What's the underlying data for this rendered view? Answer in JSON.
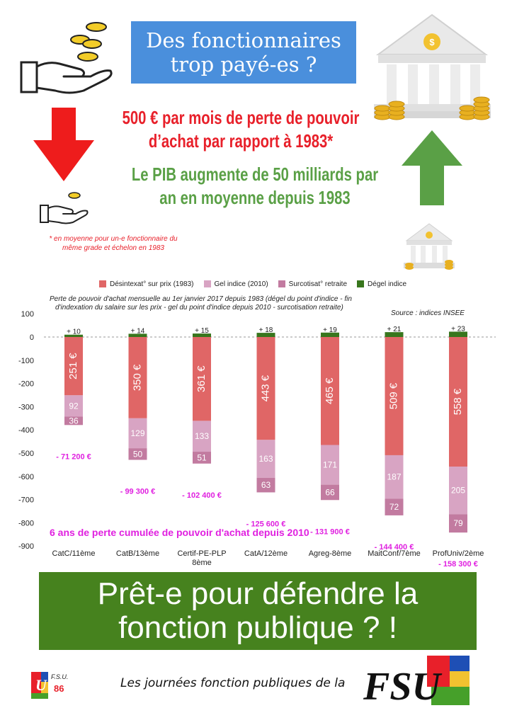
{
  "header": {
    "title_line1": "Des fonctionnaires",
    "title_line2": "trop payé-es ?"
  },
  "loss": {
    "line1": "500 € par mois de perte de pouvoir",
    "line2": "d’achat par rapport à 1983*"
  },
  "pib": {
    "line1": "Le PIB augmente de 50 milliards par",
    "line2": "an en moyenne depuis 1983"
  },
  "footnote": {
    "line1": "* en moyenne pour un-e fonctionnaire du",
    "line2": "même grade et échelon en 1983"
  },
  "colors": {
    "desindexation": "#e06666",
    "gel": "#d8a4c3",
    "surcotisation": "#c27ba0",
    "degel": "#38761d",
    "cumul_text": "#e020e0"
  },
  "chart_data": {
    "type": "bar",
    "title": "Perte de pouvoir d'achat mensuelle au 1er janvier 2017 depuis 1983 (dégel du point d'indice - fin d'indexation du salaire sur les prix - gel du point d'indice depuis 2010 - surcotisation retraite)",
    "title_line1": "Perte de pouvoir d'achat mensuelle au 1er janvier 2017 depuis 1983 (dégel du point d'indice - fin",
    "title_line2": "d'indexation du salaire sur les prix - gel du point d'indice depuis 2010 - surcotisation retraite)",
    "source": "Source : indices INSEE",
    "ylim": [
      -900,
      100
    ],
    "yticks": [
      100,
      0,
      -100,
      -200,
      -300,
      -400,
      -500,
      -600,
      -700,
      -800,
      -900
    ],
    "grid": false,
    "legend_position": "top",
    "categories": [
      "CatC/11ème",
      "CatB/13ème",
      "Certif-PE-PLP 8ème",
      "CatA/12ème",
      "Agreg-8ème",
      "MaitConf/7ème",
      "ProfUniv/2ème"
    ],
    "series": [
      {
        "name": "Désintexat° sur prix (1983)",
        "values": [
          -251,
          -350,
          -361,
          -443,
          -465,
          -509,
          -558
        ],
        "labels": [
          "251 €",
          "350 €",
          "361 €",
          "443 €",
          "465 €",
          "509 €",
          "558 €"
        ]
      },
      {
        "name": "Gel indice (2010)",
        "values": [
          -92,
          -129,
          -133,
          -163,
          -171,
          -187,
          -205
        ],
        "labels": [
          "92",
          "129",
          "133",
          "163",
          "171",
          "187",
          "205"
        ]
      },
      {
        "name": "Surcotisat° retraite",
        "values": [
          -36,
          -50,
          -51,
          -63,
          -66,
          -72,
          -79
        ],
        "labels": [
          "36",
          "50",
          "51",
          "63",
          "66",
          "72",
          "79"
        ]
      },
      {
        "name": "Dégel indice",
        "values": [
          10,
          14,
          15,
          18,
          19,
          21,
          23
        ],
        "labels": [
          "+ 10",
          "+ 14",
          "+ 15",
          "+ 18",
          "+ 19",
          "+ 21",
          "+ 23"
        ]
      }
    ],
    "cumulative_labels": [
      "- 71 200 €",
      "- 99 300 €",
      "- 102 400 €",
      "- 125 600 €",
      "- 131 900 €",
      "- 144 400 €",
      "- 158 300 €"
    ],
    "annotation": "6 ans de perte cumulée de pouvoir d'achat depuis 2010"
  },
  "slogan": {
    "line1": "Prêt-e pour défendre la",
    "line2": "fonction publique ? !"
  },
  "footer": {
    "text": "Les journées fonction publiques de la",
    "logo_text": "FSU",
    "small_logo_text": "F.S.U.",
    "small_logo_number": "86"
  }
}
